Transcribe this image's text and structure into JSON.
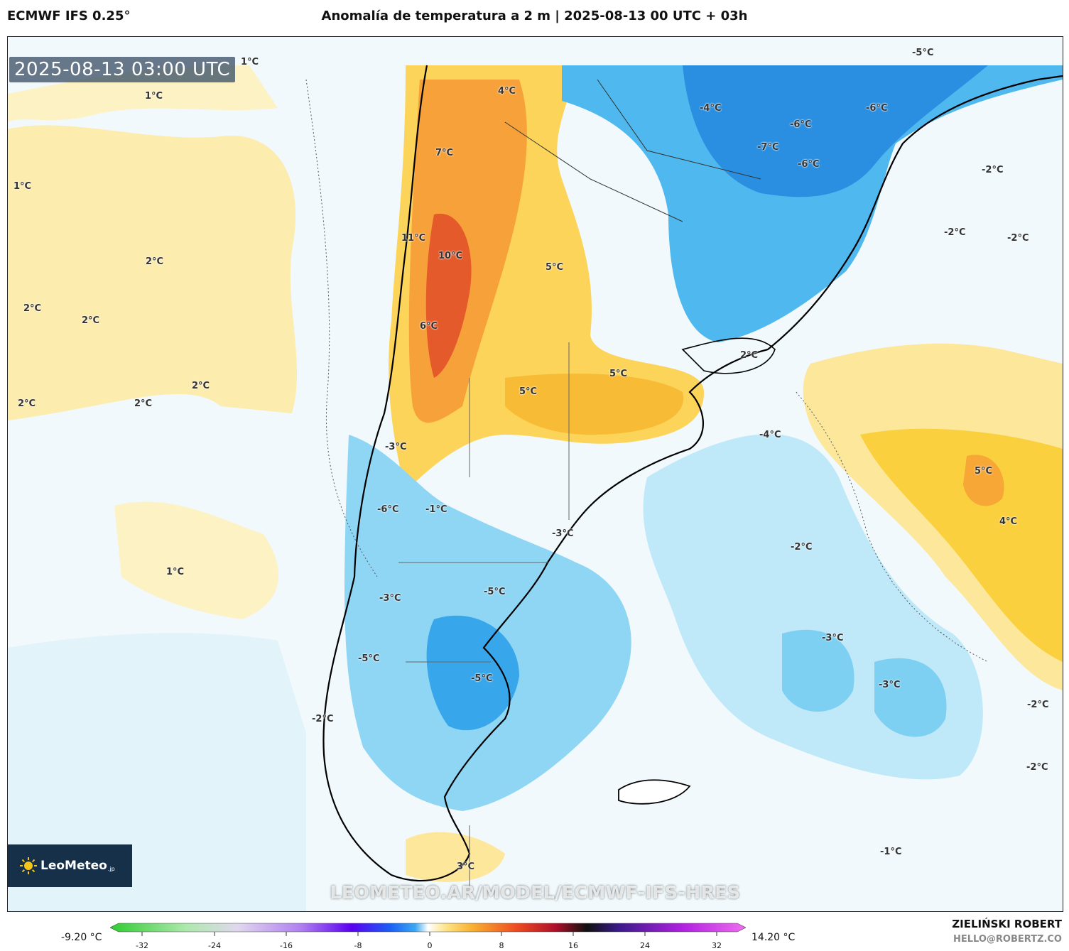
{
  "header": {
    "model": "ECMWF IFS 0.25°",
    "title": "Anomalía de temperatura a 2 m | 2025-08-13 00 UTC + 03h"
  },
  "map": {
    "timestamp": "2025-08-13 03:00 UTC",
    "labels": [
      {
        "text": "1°C"
      },
      {
        "text": "1°C"
      },
      {
        "text": "1°C"
      },
      {
        "text": "2°C"
      },
      {
        "text": "2°C"
      },
      {
        "text": "2°C"
      },
      {
        "text": "2°C"
      },
      {
        "text": "2°C"
      },
      {
        "text": "2°C"
      },
      {
        "text": "1°C"
      },
      {
        "text": "4°C"
      },
      {
        "text": "7°C"
      },
      {
        "text": "11°C"
      },
      {
        "text": "10°C"
      },
      {
        "text": "6°C"
      },
      {
        "text": "5°C"
      },
      {
        "text": "5°C"
      },
      {
        "text": "5°C"
      },
      {
        "text": "-3°C"
      },
      {
        "text": "-6°C"
      },
      {
        "text": "-1°C"
      },
      {
        "text": "-3°C"
      },
      {
        "text": "-5°C"
      },
      {
        "text": "-3°C"
      },
      {
        "text": "-5°C"
      },
      {
        "text": "-5°C"
      },
      {
        "text": "-2°C"
      },
      {
        "text": "3°C"
      },
      {
        "text": "-4°C"
      },
      {
        "text": "-6°C"
      },
      {
        "text": "-7°C"
      },
      {
        "text": "-6°C"
      },
      {
        "text": "-6°C"
      },
      {
        "text": "-5°C"
      },
      {
        "text": "-2°C"
      },
      {
        "text": "-2°C"
      },
      {
        "text": "-2°C"
      },
      {
        "text": "2°C"
      },
      {
        "text": "-4°C"
      },
      {
        "text": "5°C"
      },
      {
        "text": "4°C"
      },
      {
        "text": "-2°C"
      },
      {
        "text": "-3°C"
      },
      {
        "text": "-3°C"
      },
      {
        "text": "-2°C"
      },
      {
        "text": "-2°C"
      },
      {
        "text": "-1°C"
      }
    ],
    "logo": {
      "name": "LeoMeteo",
      "suffix": ".jp"
    },
    "watermark": "LEOMETEO.AR/MODEL/ECMWF-IFS-HRES"
  },
  "colorbar": {
    "min_label": "-9.20 °C",
    "max_label": "14.20 °C",
    "ticks": [
      "-32",
      "-24",
      "-16",
      "-8",
      "0",
      "8",
      "16",
      "24",
      "32"
    ],
    "range": [
      -35,
      35
    ]
  },
  "footer": {
    "author": "ZIELIŃSKI ROBERT",
    "website": "HELLO@ROBERTZ.CO"
  }
}
